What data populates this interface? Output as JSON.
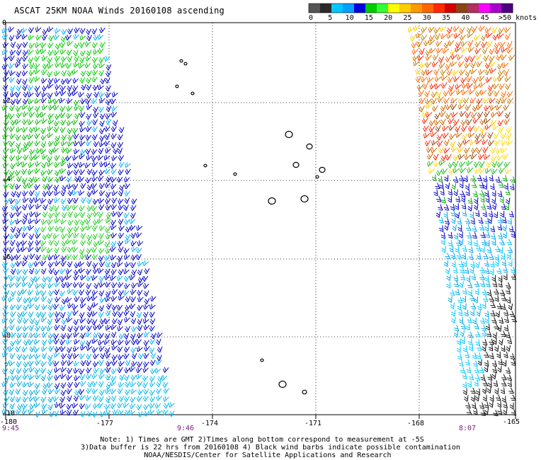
{
  "title": "ASCAT 25KM NOAA Winds 20160108 ascending",
  "colorbar": {
    "labels": [
      "0",
      "5",
      "10",
      "15",
      "20",
      "25",
      "30",
      "35",
      "40",
      "45",
      ">50 knots"
    ],
    "colors": [
      "#555555",
      "#2a2a2a",
      "#00c8ff",
      "#00a0ff",
      "#0000dd",
      "#00cc00",
      "#33ff33",
      "#ffff00",
      "#ffcc00",
      "#ff9900",
      "#ff6600",
      "#ff2a00",
      "#d40000",
      "#8b4513",
      "#b03060",
      "#ff00ff",
      "#aa00cc",
      "#4b0082"
    ]
  },
  "axes": {
    "lat_labels": [
      "0",
      "-2",
      "-4",
      "-6",
      "-8",
      "-10"
    ],
    "lon_labels": [
      "-180",
      "-177",
      "-174",
      "-171",
      "-168",
      "-165"
    ]
  },
  "times": {
    "left_bottom": "9:45",
    "mid_bottom": "9:46",
    "right_bottom": "8:07"
  },
  "notes": [
    "Note: 1) Times are GMT 2)Times along bottom correspond to measurement at -5S",
    "3)Data buffer is 22 hrs from 20160108 4) Black wind barbs indicate possible contamination",
    "NOAA/NESDIS/Center for Satellite Applications and Research"
  ]
}
